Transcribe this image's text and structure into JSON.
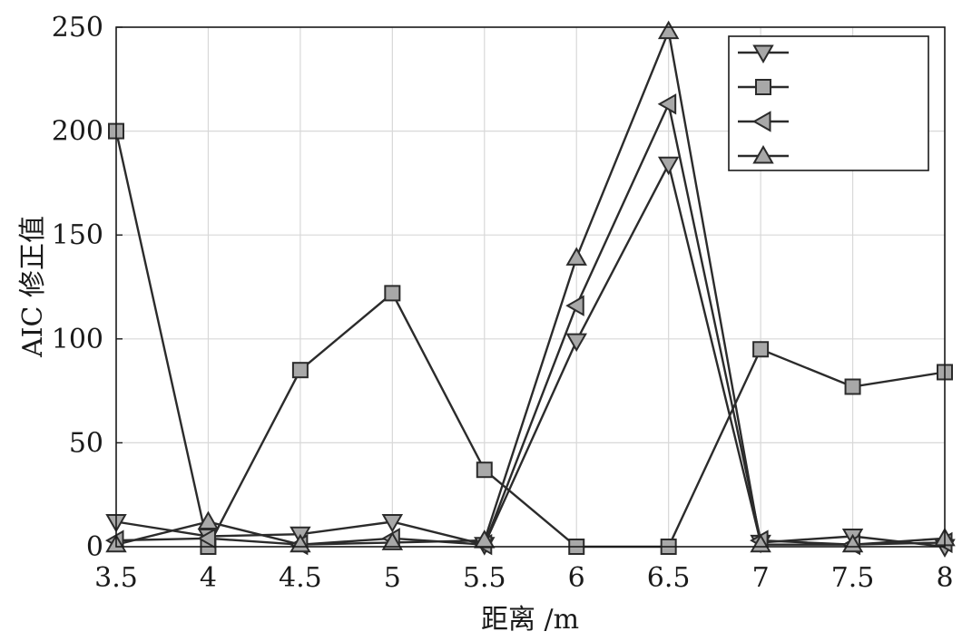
{
  "chart_data": {
    "type": "line",
    "title": "",
    "xlabel": "距离 /m",
    "ylabel": "AIC 修正值",
    "x": [
      3.5,
      4,
      4.5,
      5,
      5.5,
      6,
      6.5,
      7,
      7.5,
      8
    ],
    "xticks": [
      "3.5",
      "4",
      "4.5",
      "5",
      "5.5",
      "6",
      "6.5",
      "7",
      "7.5",
      "8"
    ],
    "yticks": [
      "0",
      "50",
      "100",
      "150",
      "200",
      "250"
    ],
    "xlim": [
      3.5,
      8
    ],
    "ylim": [
      0,
      250
    ],
    "grid": true,
    "legend_position": "top-right",
    "series": [
      {
        "marker": "triangle-down",
        "values": [
          12,
          5,
          6,
          12,
          1,
          99,
          184,
          2,
          5,
          0
        ]
      },
      {
        "marker": "square",
        "values": [
          200,
          0,
          85,
          122,
          37,
          0,
          0,
          95,
          77,
          84
        ]
      },
      {
        "marker": "triangle-left",
        "values": [
          3,
          4,
          1,
          4,
          1,
          116,
          213,
          3,
          1,
          2
        ]
      },
      {
        "marker": "triangle-up",
        "values": [
          1,
          12,
          1,
          2,
          3,
          139,
          248,
          1,
          1,
          4
        ]
      }
    ],
    "colors": {
      "line": "#2b2b2b",
      "marker_fill": "#a8a8a8",
      "marker_stroke": "#2b2b2b",
      "grid": "#d8d8d8",
      "frame": "#1a1a1a"
    }
  }
}
